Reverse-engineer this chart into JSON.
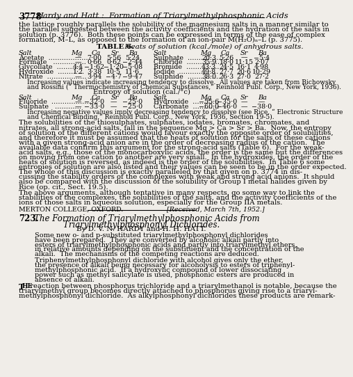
{
  "background_color": "#f0ede8",
  "page_number": "3778",
  "header_italic": "Hardy and Hatt :  Formation of Triarylmethylphosphonic Acids",
  "table_title_bold": "TABLE 6.",
  "table_subtitle_italic": "  Heats of solution (kcal./mole) of anhydrous salts.",
  "table_headers": [
    "Salt",
    "Mg",
    "Ca",
    "Sr",
    "Ba",
    "Salt",
    "Mg",
    "Ca",
    "Sr",
    "Ba"
  ],
  "table_rows_left": [
    [
      "Acetate  ………………",
      "—",
      "7·00",
      "5·56",
      "5·24"
    ],
    [
      "Formate   ……………",
      "—",
      "0·66",
      "0·62",
      "−2·44"
    ],
    [
      "Glycollate  …………",
      "4·4",
      "−1·62",
      "−1·20",
      "−5·08"
    ],
    [
      "Hydroxide  …………",
      "1·2",
      "3·38",
      "10·5",
      "11·6"
    ],
    [
      "Nitrate  ………………",
      "—",
      "3·94",
      "−4·7",
      "−9·47"
    ]
  ],
  "table_rows_right": [
    [
      "Sulphate  ……………",
      "20·3",
      "5·26",
      "—",
      "−5·4"
    ],
    [
      "Chloride  ……………",
      "35·9",
      "18·0",
      "11·15",
      "2·07"
    ],
    [
      "Bromide  ……………",
      "43·3",
      "24·5",
      "16·1",
      "4·98"
    ],
    [
      "Iodide  ………………",
      "49·8",
      "27·7",
      "20·6",
      "10·29"
    ],
    [
      "Sulphide  ……………",
      "38·0",
      "26·3",
      "27·0",
      "27·2"
    ]
  ],
  "table_note1_lines": [
    "Increasing values indicate increasing tendency to dissolve.  All values are taken from Bichowsky",
    "and Rossini (“ Thermochemistry of Chemical Substances,” Reinhold Publ. Corp., New York, 1936)."
  ],
  "entropy_title": "Entropy of solution (cal./°c)",
  "entropy_rows_left": [
    [
      "Fluoride  ………………",
      "—",
      "−32·0",
      "—",
      "−25·0"
    ],
    [
      "Sulphate   …………",
      "—",
      "−33·0",
      "—",
      "−25·0"
    ]
  ],
  "entropy_rows_right": [
    [
      "Hydroxide  …………",
      "−55·6",
      "−35·0",
      "—",
      "—"
    ],
    [
      "Carbonate  …………",
      "−60·0",
      "−46·0",
      "—",
      "−38·0"
    ]
  ],
  "table_note2_lines": [
    "Increasing negative values imply decreasing tendency to dissolve (see Rice, “ Electronic Structure",
    "and Chemical Binding,” Reinhold Publ. Corp., New York, 1936, Section 19-5)."
  ],
  "body1_lines": [
    "The solubilities of the thiosulphates, sulphates, iodates, bromates, chromates, and",
    "nitrates, all strong-acid salts, fall in the sequence Mg > Ca > Sr > Ba.  Now, the entropy",
    "of solution of the different cations would favour exactly the opposite order of solubilities,",
    "and therefore it must be assumed that the heats of solution for the salts of these cations",
    "with a given strong-acid anion are in the order of decreasing radius of the cation.  The",
    "available data confirm this argument for the strong-acid salts (Table 6).  For the weak-",
    "acid salts, e.g., those of the monocarboxylic acids, the order is the same but the differences",
    "on moving from one cation to another are very small.  In the hydroxides, the order of the",
    "heats of solution is reversed, as indeed is the order of the solubilities.  In Table 6 some",
    "entropies of solution are also listed and their values can be seen to be in the order expected.",
    "The whole of this discussion is exactly paralleled by that given on p. 3774 in dis-",
    "cussing the stability orders of the complexes with weak and strong acid anions.  It should",
    "also be compared with the discussion of the solubility of Group I metal halides given by",
    "Rice (op. cit., Sect. 19.5)."
  ],
  "body2_lines": [
    "The above arguments, although tentative in many respects, go some way to link the",
    "stabilities of the complexes, the solubilities of the salts, and the activity coefficients of the",
    "ions of those salts in aqueous solution, especially for the Group IIA metals."
  ],
  "affiliation": "MERTON COLLEGE, OXFORD.",
  "received": "[Received, March 7th, 1952.]",
  "article_number": "723.",
  "article_title_line1": "The Formation of Triarylmethylphosphonic Acids from",
  "article_title_line2": "Triarylmethylphosphonyl Dichlorides.",
  "article_authors": "By D. V. N. HARDY and H. H. HATT.",
  "abs1_lines": [
    "Some new o- and p-substituted triarylmethylphosphonyl dichlorides",
    "have been prepared.  They are converted by alcoholic alkali partly into",
    "esters of triarylmethylphosphonic acids and partly into triarylmethyl ethers,",
    "in relative amounts depending on the substituent and the concentration of the",
    "alkali.  The mechanisms of the competing reactions are deduced."
  ],
  "abs2_lines": [
    "Triphenylmethylphosphonyl dichloride with alcohol gives only the ether,",
    "the presence of alkali being necessary for alcoholysis to esters of triphenyl-",
    "methylphosphonic acid.  If a hydroxylic compound of lower dissociating",
    "power such as methyl salicylate is used, phosphonic esters are produced in",
    "absence of alkali."
  ],
  "body_start_lines": [
    " reaction between phosphorus trichloride and a triarylmethanol is notable, because the",
    "triarylmethyl group becomes directly attached to phosphorus giving rise to a triaryl-",
    "methylphosphonyl dichloride.  As alkylphosphonyl dichlorides these products are remark-"
  ],
  "intro_lines": [
    "the lattice roughly parallels the solubility of the magnesium salts in a manner similar to",
    "the parallel suggested between the activity coefficients and the hydration of the salts in",
    "solution (p. 3776).  Both these points can be expressed in terms of the ease of complex",
    "formation, M–L, as opposed to the formation of an ion-pair M(H₂O)ₙ–L (p. 3775)."
  ]
}
